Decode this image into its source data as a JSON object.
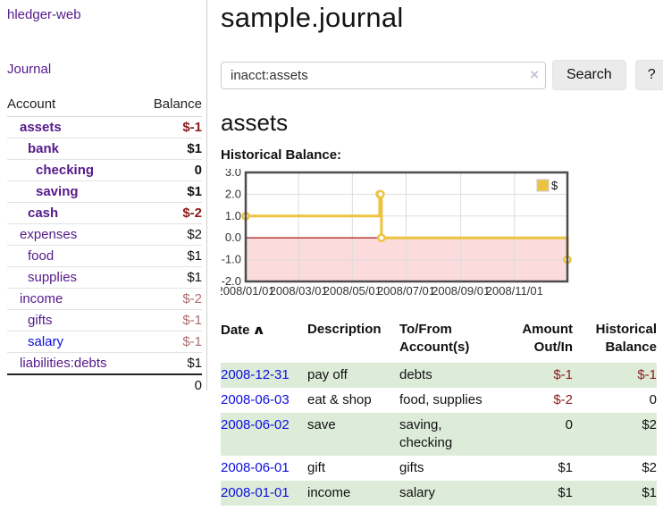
{
  "app": {
    "brand": "hledger-web",
    "nav_journal": "Journal"
  },
  "sidebar": {
    "columns": {
      "account": "Account",
      "balance": "Balance"
    },
    "accounts": [
      {
        "name": "assets",
        "balance": "$-1",
        "level": 0,
        "bold": true,
        "blue": false
      },
      {
        "name": "bank",
        "balance": "$1",
        "level": 1,
        "bold": true,
        "blue": false
      },
      {
        "name": "checking",
        "balance": "0",
        "level": 2,
        "bold": true,
        "blue": false
      },
      {
        "name": "saving",
        "balance": "$1",
        "level": 2,
        "bold": true,
        "blue": false
      },
      {
        "name": "cash",
        "balance": "$-2",
        "level": 1,
        "bold": true,
        "blue": false
      },
      {
        "name": "expenses",
        "balance": "$2",
        "level": 0,
        "bold": false,
        "blue": false
      },
      {
        "name": "food",
        "balance": "$1",
        "level": 1,
        "bold": false,
        "blue": false
      },
      {
        "name": "supplies",
        "balance": "$1",
        "level": 1,
        "bold": false,
        "blue": false
      },
      {
        "name": "income",
        "balance": "$-2",
        "level": 0,
        "bold": false,
        "blue": false
      },
      {
        "name": "gifts",
        "balance": "$-1",
        "level": 1,
        "bold": false,
        "blue": false
      },
      {
        "name": "salary",
        "balance": "$-1",
        "level": 1,
        "bold": false,
        "blue": true
      },
      {
        "name": "liabilities:debts",
        "balance": "$1",
        "level": 0,
        "bold": false,
        "blue": false
      }
    ],
    "total": "0"
  },
  "header": {
    "title": "sample.journal"
  },
  "search": {
    "value": "inacct:assets",
    "clear_icon": "×",
    "button_label": "Search",
    "help_label": "?"
  },
  "account_page": {
    "heading": "assets",
    "chart_label": "Historical Balance:"
  },
  "chart_data": {
    "type": "line",
    "step": true,
    "title": "Historical Balance",
    "series": [
      {
        "name": "$",
        "color": "#EDC240",
        "points": [
          {
            "x": "2008-01-01",
            "y": 1
          },
          {
            "x": "2008-06-01",
            "y": 2
          },
          {
            "x": "2008-06-02",
            "y": 2
          },
          {
            "x": "2008-06-03",
            "y": 0
          },
          {
            "x": "2008-12-31",
            "y": -1
          }
        ]
      }
    ],
    "ylim": [
      -2.0,
      3.0
    ],
    "yticks": [
      "3.0",
      "2.0",
      "1.0",
      "0.0",
      "-1.0",
      "-2.0"
    ],
    "xticks": [
      "2008/01/01",
      "2008/03/01",
      "2008/05/01",
      "2008/07/01",
      "2008/09/01",
      "2008/11/01"
    ],
    "xrange": [
      "2008-01-01",
      "2008-12-31"
    ],
    "grid": true,
    "legend": {
      "label": "$",
      "position": "top-right"
    },
    "colors": {
      "line": "#EDC240",
      "marker_fill": "#FFFFFF",
      "negative_region": "#FBDBDB",
      "zero_line": "#A40000",
      "gridline": "#DDDDDD",
      "plot_border": "#4D4D4D"
    }
  },
  "register": {
    "sort_indicator": "∧",
    "columns": [
      {
        "label": "Date"
      },
      {
        "label": "Description"
      },
      {
        "label": "To/From Account(s)"
      },
      {
        "label": "Amount Out/In"
      },
      {
        "label": "Historical Balance"
      }
    ],
    "rows": [
      {
        "date": "2008-12-31",
        "description": "pay off",
        "accounts": "debts",
        "amount": "$-1",
        "balance": "$-1"
      },
      {
        "date": "2008-06-03",
        "description": "eat & shop",
        "accounts": "food, supplies",
        "amount": "$-2",
        "balance": "0"
      },
      {
        "date": "2008-06-02",
        "description": "save",
        "accounts": "saving, checking",
        "amount": "0",
        "balance": "$2"
      },
      {
        "date": "2008-06-01",
        "description": "gift",
        "accounts": "gifts",
        "amount": "$1",
        "balance": "$2"
      },
      {
        "date": "2008-01-01",
        "description": "income",
        "accounts": "salary",
        "amount": "$1",
        "balance": "$1"
      }
    ]
  }
}
